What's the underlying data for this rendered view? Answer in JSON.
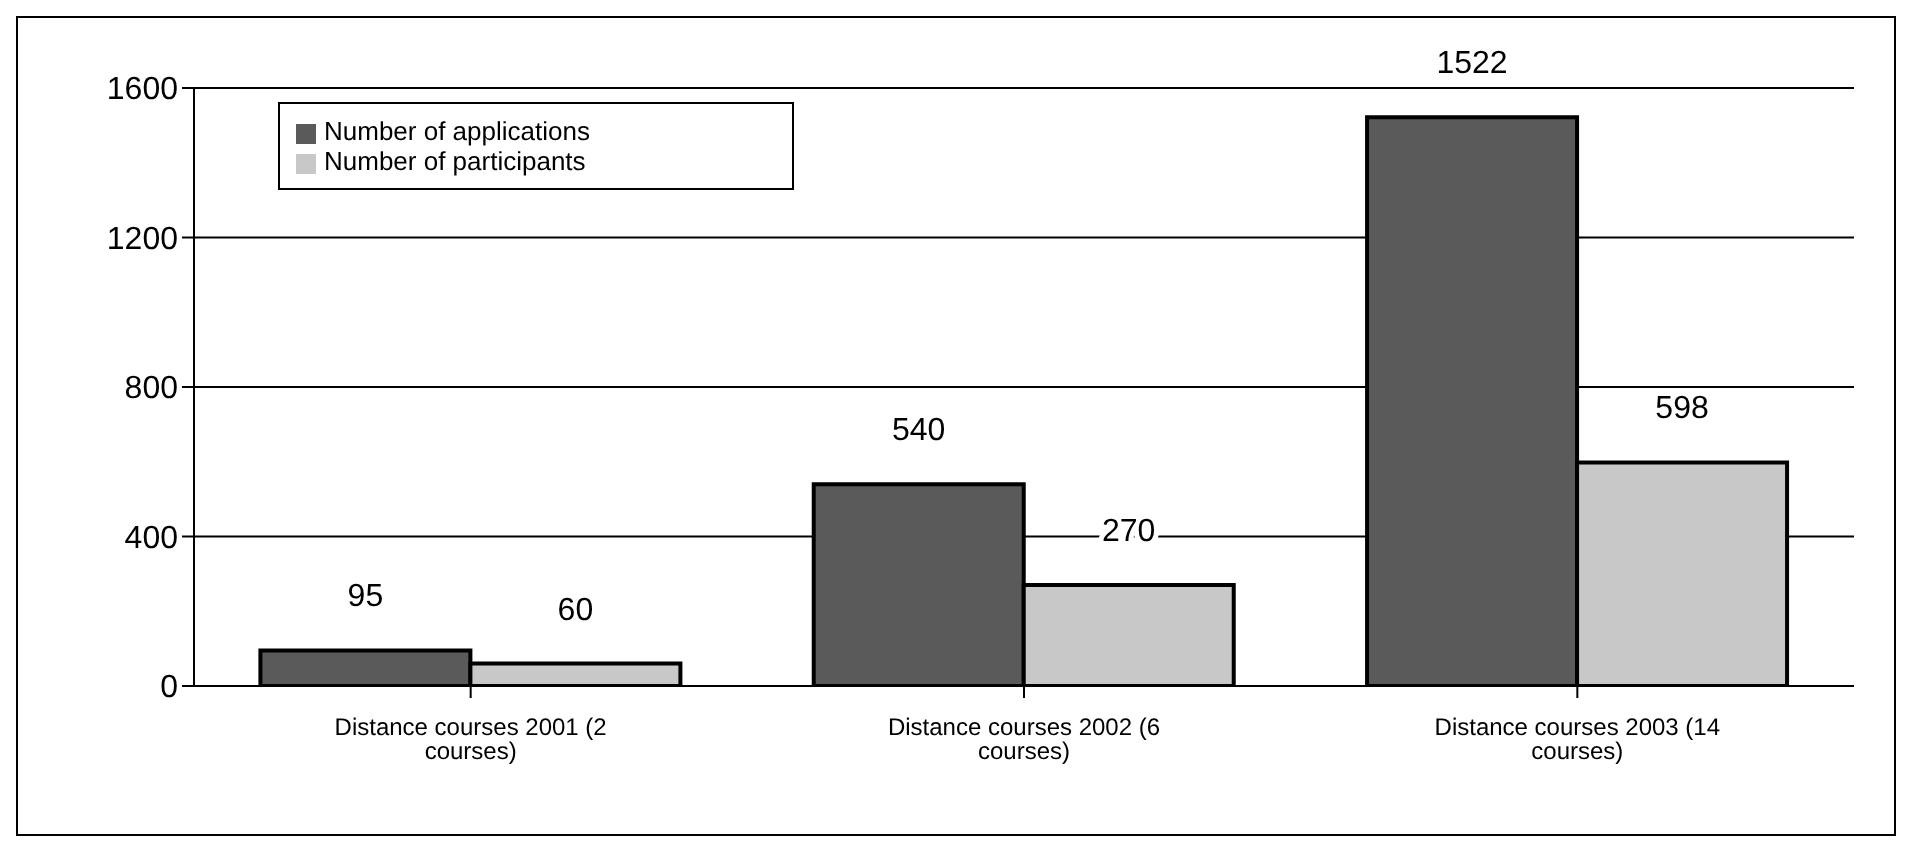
{
  "chart_data": {
    "type": "bar",
    "categories": [
      "Distance courses 2001 (2 courses)",
      "Distance courses 2002 (6 courses)",
      "Distance courses 2003 (14 courses)"
    ],
    "series": [
      {
        "name": "Number of applications",
        "color": "#5a5a5a",
        "values": [
          95,
          540,
          1522
        ]
      },
      {
        "name": "Number of participants",
        "color": "#c8c8c8",
        "values": [
          60,
          270,
          598
        ]
      }
    ],
    "ylim": [
      0,
      1600
    ],
    "yticks": [
      0,
      400,
      800,
      1200,
      1600
    ],
    "grid": "y",
    "legend": "top left",
    "data_labels": true
  }
}
